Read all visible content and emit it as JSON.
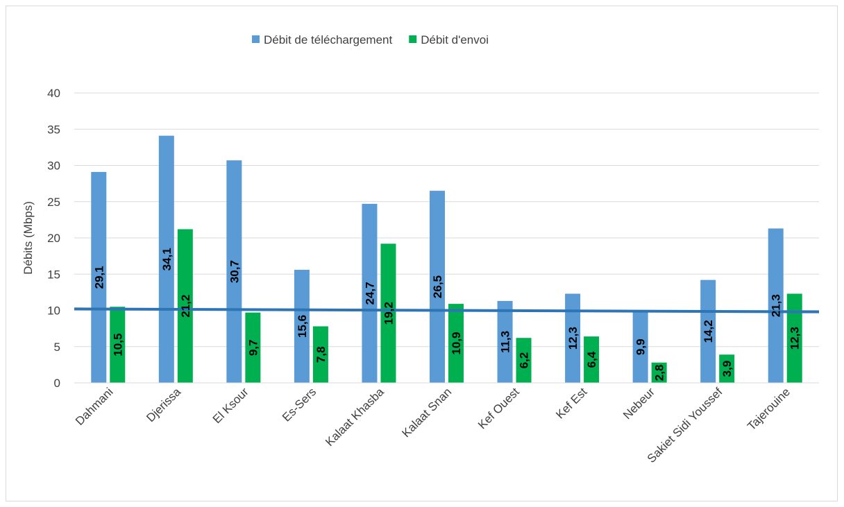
{
  "chart_data": {
    "type": "bar",
    "title": "",
    "xlabel": "",
    "ylabel": "Débits (Mbps)",
    "ylim": [
      0,
      40
    ],
    "yticks": [
      0,
      5,
      10,
      15,
      20,
      25,
      30,
      35,
      40
    ],
    "grid": true,
    "legend_position": "top",
    "categories": [
      "Dahmani",
      "Djerissa",
      "El Ksour",
      "Es-Sers",
      "Kalaat Khasba",
      "Kalaat Snan",
      "Kef Ouest",
      "Kef Est",
      "Nebeur",
      "Sakiet Sidi Youssef",
      "Tajerouine"
    ],
    "series": [
      {
        "name": "Débit de téléchargement",
        "color": "#5b9bd5",
        "values": [
          29.1,
          34.1,
          30.7,
          15.6,
          24.7,
          26.5,
          11.3,
          12.3,
          9.9,
          14.2,
          21.3
        ],
        "labels": [
          "29,1",
          "34,1",
          "30,7",
          "15,6",
          "24,7",
          "26,5",
          "11,3",
          "12,3",
          "9,9",
          "14,2",
          "21,3"
        ]
      },
      {
        "name": "Débit d'envoi",
        "color": "#00b050",
        "values": [
          10.5,
          21.2,
          9.7,
          7.8,
          19.2,
          10.9,
          6.2,
          6.4,
          2.8,
          3.9,
          12.3
        ],
        "labels": [
          "10,5",
          "21,2",
          "9,7",
          "7,8",
          "19,2",
          "10,9",
          "6,2",
          "6,4",
          "2,8",
          "3,9",
          "12,3"
        ]
      }
    ],
    "reference_line": {
      "color": "#2e75b6",
      "y_start": 10.2,
      "y_end": 9.8
    }
  }
}
